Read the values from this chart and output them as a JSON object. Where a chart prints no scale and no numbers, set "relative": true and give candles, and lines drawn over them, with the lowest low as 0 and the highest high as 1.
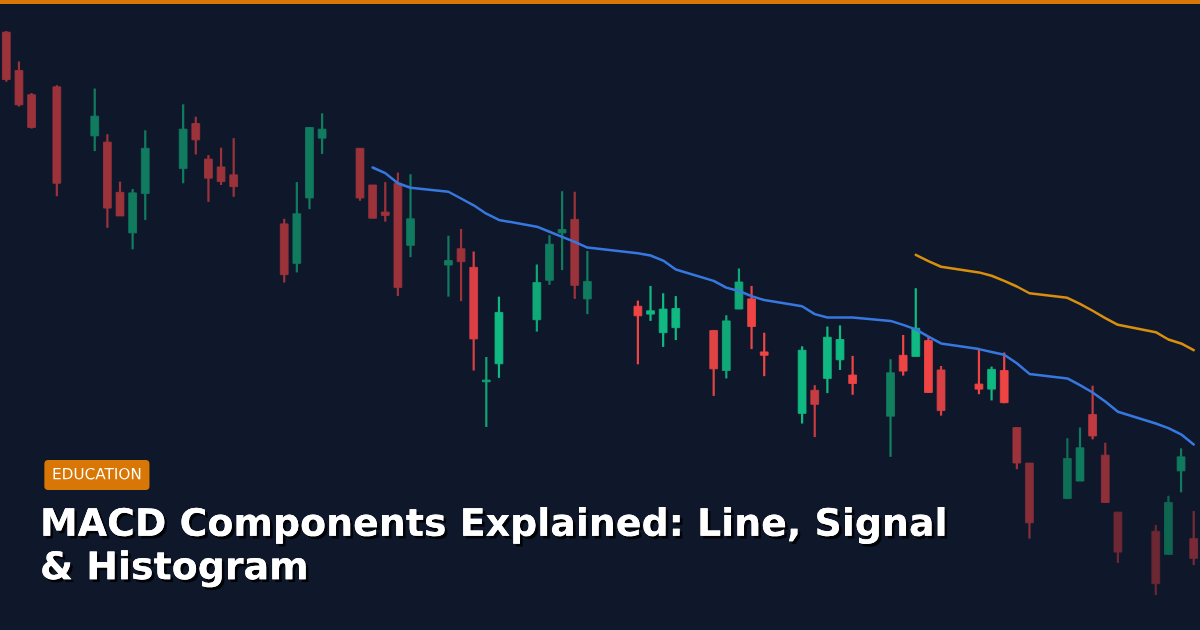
{
  "chart_data": {
    "type": "candlestick",
    "relative": true,
    "title": "MACD Components Explained: Line, Signal & Histogram",
    "annotations": [
      "EDUCATION"
    ],
    "categories": [
      null,
      null,
      null,
      null,
      null,
      null,
      null,
      null,
      null,
      null,
      null,
      null,
      null,
      null,
      null,
      null,
      null,
      null,
      null,
      null,
      null,
      null,
      null,
      null,
      null,
      null,
      null,
      null,
      null,
      null,
      null,
      null,
      null,
      null,
      null,
      null,
      null,
      null,
      null,
      null,
      null,
      null,
      null,
      null,
      null,
      null,
      null,
      null,
      null,
      null,
      null,
      null,
      null,
      null,
      null,
      null,
      null,
      null,
      null,
      null,
      null,
      null,
      null,
      null,
      null,
      null,
      null,
      null,
      null,
      null,
      null,
      null,
      null,
      null,
      null,
      null,
      null,
      null,
      null,
      null,
      null,
      null,
      null,
      null,
      null,
      null,
      null,
      null,
      null,
      null,
      null,
      null,
      null,
      null,
      null
    ],
    "ohlc": [
      [
        0.998,
        1.0,
        0.91,
        0.914
      ],
      [
        0.93,
        0.946,
        0.866,
        0.869
      ],
      [
        0.887,
        0.89,
        0.827,
        0.829
      ],
      null,
      [
        0.901,
        0.904,
        0.707,
        0.73
      ],
      null,
      null,
      [
        0.814,
        0.898,
        0.787,
        0.849
      ],
      [
        0.803,
        0.817,
        0.651,
        0.686
      ],
      [
        0.714,
        0.733,
        0.672,
        0.672
      ],
      [
        0.642,
        0.72,
        0.613,
        0.713
      ],
      [
        0.712,
        0.824,
        0.665,
        0.792
      ],
      null,
      null,
      [
        0.756,
        0.87,
        0.73,
        0.826
      ],
      [
        0.836,
        0.848,
        0.781,
        0.807
      ],
      [
        0.773,
        0.78,
        0.697,
        0.739
      ],
      [
        0.759,
        0.793,
        0.727,
        0.733
      ],
      [
        0.745,
        0.81,
        0.706,
        0.724
      ],
      null,
      null,
      null,
      [
        0.658,
        0.667,
        0.554,
        0.568
      ],
      [
        0.588,
        0.732,
        0.572,
        0.676
      ],
      [
        0.704,
        0.829,
        0.684,
        0.829
      ],
      [
        0.81,
        0.854,
        0.782,
        0.826
      ],
      null,
      null,
      [
        0.792,
        0.792,
        0.699,
        0.704
      ],
      [
        0.727,
        0.727,
        0.668,
        0.668
      ],
      [
        0.679,
        0.732,
        0.662,
        0.673
      ],
      [
        0.73,
        0.749,
        0.53,
        0.545
      ],
      [
        0.62,
        0.746,
        0.599,
        0.667
      ],
      null,
      null,
      [
        0.585,
        0.637,
        0.529,
        0.593
      ],
      [
        0.614,
        0.649,
        0.521,
        0.591
      ],
      [
        0.581,
        0.609,
        0.398,
        0.454
      ],
      [
        0.378,
        0.422,
        0.298,
        0.381
      ],
      [
        0.41,
        0.529,
        0.385,
        0.501
      ],
      null,
      null,
      [
        0.488,
        0.586,
        0.467,
        0.554
      ],
      [
        0.558,
        0.638,
        0.55,
        0.622
      ],
      [
        0.642,
        0.716,
        0.576,
        0.648
      ],
      [
        0.666,
        0.715,
        0.525,
        0.549
      ],
      [
        0.525,
        0.61,
        0.498,
        0.556
      ],
      null,
      null,
      null,
      [
        0.512,
        0.522,
        0.409,
        0.495
      ],
      [
        0.498,
        0.548,
        0.486,
        0.504
      ],
      [
        0.465,
        0.535,
        0.44,
        0.507
      ],
      [
        0.474,
        0.53,
        0.452,
        0.508
      ],
      null,
      null,
      [
        0.469,
        0.47,
        0.353,
        0.401
      ],
      [
        0.398,
        0.496,
        0.384,
        0.486
      ],
      [
        0.507,
        0.579,
        0.507,
        0.555
      ],
      [
        0.525,
        0.548,
        0.436,
        0.476
      ],
      [
        0.431,
        0.465,
        0.388,
        0.425
      ],
      null,
      null,
      [
        0.322,
        0.441,
        0.304,
        0.434
      ],
      [
        0.363,
        0.372,
        0.28,
        0.338
      ],
      [
        0.384,
        0.476,
        0.358,
        0.457
      ],
      [
        0.417,
        0.478,
        0.399,
        0.453
      ],
      [
        0.39,
        0.424,
        0.355,
        0.375
      ],
      null,
      null,
      [
        0.317,
        0.418,
        0.245,
        0.394
      ],
      [
        0.425,
        0.461,
        0.389,
        0.397
      ],
      [
        0.423,
        0.544,
        0.423,
        0.473
      ],
      [
        0.451,
        0.459,
        0.359,
        0.359
      ],
      [
        0.399,
        0.406,
        0.318,
        0.327
      ],
      null,
      null,
      [
        0.374,
        0.436,
        0.356,
        0.365
      ],
      [
        0.365,
        0.405,
        0.345,
        0.4
      ],
      [
        0.398,
        0.43,
        0.34,
        0.341
      ],
      [
        0.297,
        0.297,
        0.223,
        0.234
      ],
      [
        0.234,
        0.234,
        0.1,
        0.128
      ],
      null,
      null,
      [
        0.171,
        0.278,
        0.171,
        0.242
      ],
      [
        0.202,
        0.297,
        0.202,
        0.261
      ],
      [
        0.32,
        0.371,
        0.276,
        0.282
      ],
      [
        0.248,
        0.27,
        0.164,
        0.164
      ],
      [
        0.147,
        0.147,
        0.057,
        0.076
      ],
      null,
      null,
      [
        0.113,
        0.124,
        0.0,
        0.02
      ],
      [
        0.072,
        0.176,
        0.072,
        0.164
      ],
      [
        0.22,
        0.26,
        0.182,
        0.245
      ],
      [
        0.1,
        0.149,
        0.053,
        0.065
      ]
    ],
    "colors": [
      "#9c333b",
      "#9c333b",
      "#9c333b",
      null,
      "#9c333b",
      null,
      null,
      "#117b5f",
      "#9c333b",
      "#9c333b",
      "#117b5f",
      "#117b5f",
      null,
      null,
      "#117b5f",
      "#9c333b",
      "#9c333b",
      "#9c333b",
      "#9c333b",
      null,
      null,
      null,
      "#9c333b",
      "#117b5f",
      "#117b5f",
      "#117b5f",
      null,
      null,
      "#9c333b",
      "#9c333b",
      "#9c333b",
      "#9c333b",
      "#117b5f",
      null,
      null,
      "#117b5f",
      "#9c333b",
      "#d93f44",
      "#10a373",
      "#10b981",
      null,
      null,
      "#10a877",
      "#117b5f",
      "#117b5f",
      "#9c333b",
      "#117b5f",
      null,
      null,
      null,
      "#ef4444",
      "#10b981",
      "#10b981",
      "#10b981",
      null,
      null,
      "#e04343",
      "#10a877",
      "#10a877",
      "#ef4444",
      "#ef4444",
      null,
      null,
      "#10b981",
      "#c53c42",
      "#10b981",
      "#10b981",
      "#ef4444",
      null,
      null,
      "#11805f",
      "#ef4444",
      "#10b981",
      "#ef4444",
      "#d94045",
      null,
      null,
      "#ef4444",
      "#10b981",
      "#ef4444",
      "#9c333b",
      "#872e39",
      null,
      null,
      "#0f6e56",
      "#0f7a5d",
      "#c23a41",
      "#8e2f3a",
      "#6e2834",
      null,
      null,
      "#6b2833",
      "#0e6650",
      "#0f7a5d",
      "#7a2a36"
    ],
    "series": [
      {
        "type": "line",
        "color": "#3778e0",
        "values": [
          null,
          null,
          null,
          null,
          null,
          null,
          null,
          null,
          null,
          null,
          null,
          null,
          null,
          null,
          null,
          null,
          null,
          null,
          null,
          null,
          null,
          null,
          null,
          null,
          null,
          null,
          null,
          null,
          null,
          0.758,
          0.748,
          0.73,
          0.722,
          null,
          null,
          0.715,
          0.703,
          0.691,
          0.676,
          0.665,
          null,
          null,
          0.653,
          0.644,
          0.635,
          0.626,
          0.616,
          null,
          null,
          null,
          0.606,
          0.602,
          0.593,
          0.577,
          null,
          null,
          0.557,
          0.545,
          0.539,
          0.53,
          0.523,
          null,
          null,
          0.512,
          0.498,
          0.492,
          0.492,
          0.492,
          null,
          null,
          0.486,
          0.479,
          0.471,
          0.458,
          0.446,
          null,
          null,
          0.436,
          0.431,
          0.426,
          0.411,
          0.392,
          null,
          null,
          0.384,
          0.372,
          0.359,
          0.343,
          0.325,
          null,
          null,
          0.304,
          0.296,
          0.285,
          0.267
        ]
      },
      {
        "type": "line",
        "color": "#d98f0e",
        "values": [
          null,
          null,
          null,
          null,
          null,
          null,
          null,
          null,
          null,
          null,
          null,
          null,
          null,
          null,
          null,
          null,
          null,
          null,
          null,
          null,
          null,
          null,
          null,
          null,
          null,
          null,
          null,
          null,
          null,
          null,
          null,
          null,
          null,
          null,
          null,
          null,
          null,
          null,
          null,
          null,
          null,
          null,
          null,
          null,
          null,
          null,
          null,
          null,
          null,
          null,
          null,
          null,
          null,
          null,
          null,
          null,
          null,
          null,
          null,
          null,
          null,
          null,
          null,
          null,
          null,
          null,
          null,
          null,
          null,
          null,
          null,
          null,
          0.603,
          0.592,
          0.582,
          null,
          null,
          0.572,
          0.566,
          0.557,
          0.547,
          0.535,
          null,
          null,
          0.527,
          0.516,
          0.504,
          0.491,
          0.479,
          null,
          null,
          0.466,
          0.453,
          0.446,
          0.434
        ]
      }
    ]
  }
}
